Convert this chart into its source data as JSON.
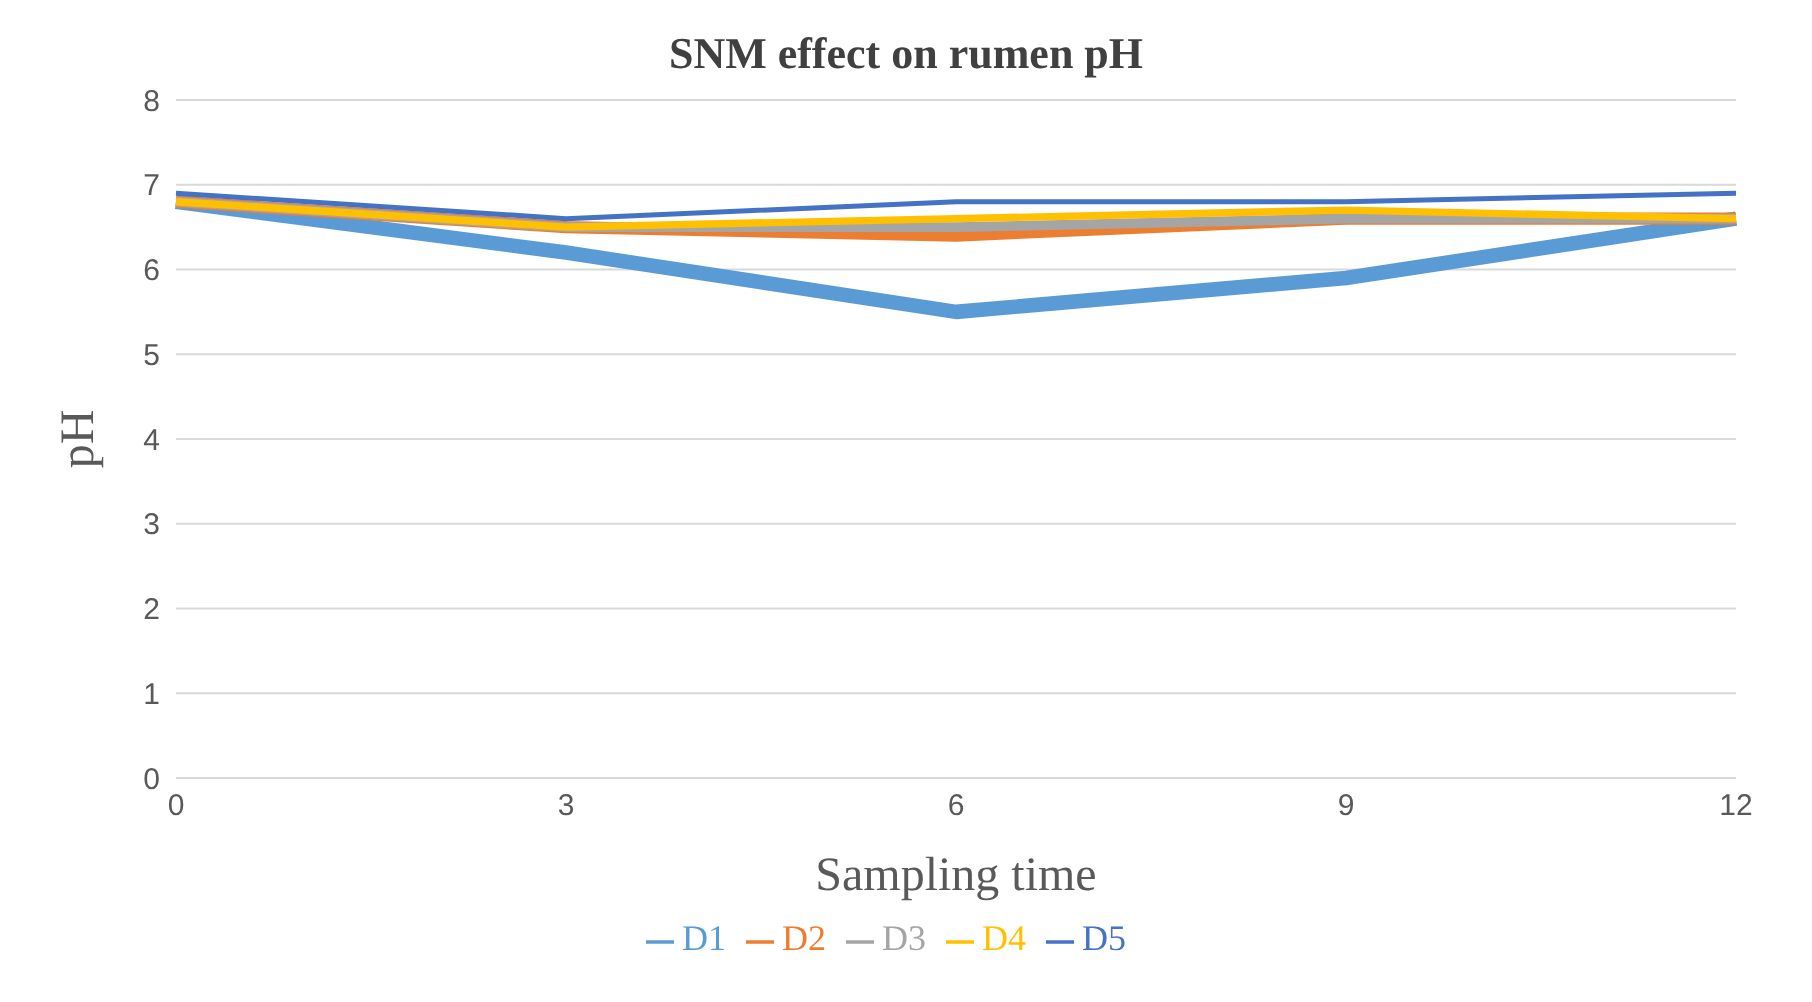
{
  "chart_data": {
    "type": "line",
    "title": "SNM effect on rumen pH",
    "xlabel": "Sampling time",
    "ylabel": "pH",
    "categories": [
      "0",
      "3",
      "6",
      "9",
      "12"
    ],
    "series": [
      {
        "name": "D1",
        "color": "#5b9bd5",
        "values": [
          6.8,
          6.2,
          5.5,
          5.9,
          6.6
        ]
      },
      {
        "name": "D2",
        "color": "#ed7d31",
        "values": [
          6.8,
          6.5,
          6.4,
          6.6,
          6.6
        ]
      },
      {
        "name": "D3",
        "color": "#a5a5a5",
        "values": [
          6.8,
          6.5,
          6.5,
          6.6,
          6.6
        ]
      },
      {
        "name": "D4",
        "color": "#ffc000",
        "values": [
          6.8,
          6.5,
          6.6,
          6.7,
          6.6
        ]
      },
      {
        "name": "D5",
        "color": "#4472c4",
        "values": [
          6.9,
          6.6,
          6.8,
          6.8,
          6.9
        ]
      }
    ],
    "ylim": [
      0,
      8
    ],
    "yticks": [
      0,
      1,
      2,
      3,
      4,
      5,
      6,
      7,
      8
    ],
    "grid": "y",
    "legend": "bottom",
    "marker": "none",
    "line_style": "solid"
  }
}
